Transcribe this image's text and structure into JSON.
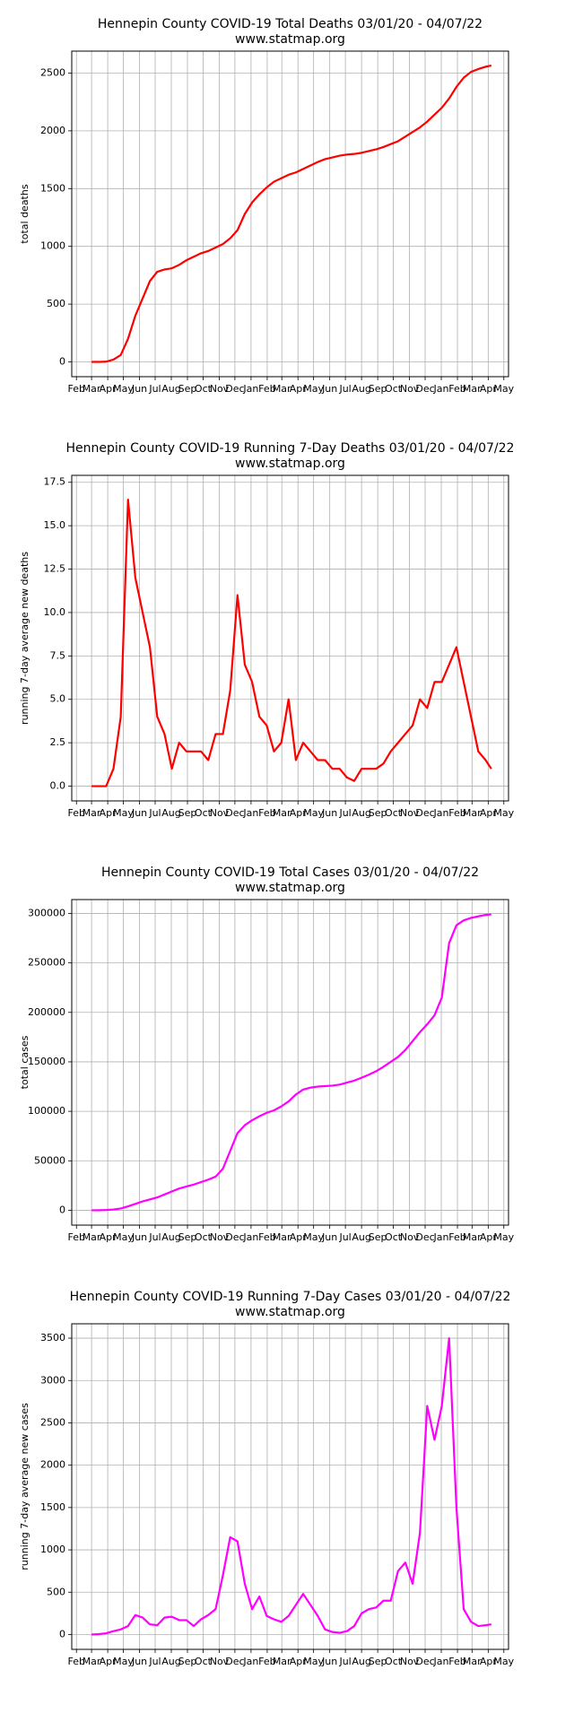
{
  "chart_data": [
    {
      "type": "line",
      "title": "Hennepin County COVID-19 Total Deaths 03/01/20 - 04/07/22",
      "subtitle": "www.statmap.org",
      "ylabel": "total deaths",
      "color": "#ff0000",
      "grid": true,
      "x": [
        0,
        14,
        28,
        42,
        56,
        70,
        84,
        98,
        112,
        126,
        140,
        154,
        168,
        182,
        196,
        210,
        224,
        238,
        252,
        266,
        280,
        294,
        308,
        322,
        336,
        350,
        364,
        378,
        392,
        406,
        420,
        434,
        448,
        462,
        476,
        490,
        504,
        518,
        532,
        546,
        560,
        574,
        588,
        602,
        616,
        630,
        644,
        658,
        672,
        686,
        700,
        714,
        728,
        742,
        756,
        767
      ],
      "values": [
        0,
        0,
        2,
        20,
        60,
        200,
        400,
        550,
        700,
        780,
        800,
        810,
        840,
        880,
        910,
        940,
        960,
        990,
        1020,
        1070,
        1140,
        1280,
        1380,
        1450,
        1510,
        1560,
        1590,
        1620,
        1640,
        1670,
        1700,
        1730,
        1755,
        1770,
        1785,
        1795,
        1800,
        1810,
        1825,
        1840,
        1860,
        1885,
        1910,
        1950,
        1990,
        2030,
        2080,
        2140,
        2200,
        2280,
        2380,
        2460,
        2510,
        2535,
        2555,
        2565
      ],
      "xlim": [
        -38,
        800
      ],
      "xticks": [
        {
          "value": -29,
          "label": "Feb"
        },
        {
          "value": 0,
          "label": "Mar"
        },
        {
          "value": 31,
          "label": "Apr"
        },
        {
          "value": 61,
          "label": "May"
        },
        {
          "value": 92,
          "label": "Jun"
        },
        {
          "value": 122,
          "label": "Jul"
        },
        {
          "value": 153,
          "label": "Aug"
        },
        {
          "value": 184,
          "label": "Sep"
        },
        {
          "value": 214,
          "label": "Oct"
        },
        {
          "value": 245,
          "label": "Nov"
        },
        {
          "value": 275,
          "label": "Dec"
        },
        {
          "value": 306,
          "label": "Jan"
        },
        {
          "value": 337,
          "label": "Feb"
        },
        {
          "value": 365,
          "label": "Mar"
        },
        {
          "value": 396,
          "label": "Apr"
        },
        {
          "value": 426,
          "label": "May"
        },
        {
          "value": 457,
          "label": "Jun"
        },
        {
          "value": 487,
          "label": "Jul"
        },
        {
          "value": 518,
          "label": "Aug"
        },
        {
          "value": 549,
          "label": "Sep"
        },
        {
          "value": 579,
          "label": "Oct"
        },
        {
          "value": 610,
          "label": "Nov"
        },
        {
          "value": 640,
          "label": "Dec"
        },
        {
          "value": 671,
          "label": "Jan"
        },
        {
          "value": 702,
          "label": "Feb"
        },
        {
          "value": 730,
          "label": "Mar"
        },
        {
          "value": 761,
          "label": "Apr"
        },
        {
          "value": 791,
          "label": "May"
        }
      ],
      "ylim": [
        -128,
        2690
      ],
      "yticks": [
        0,
        500,
        1000,
        1500,
        2000,
        2500
      ]
    },
    {
      "type": "line",
      "title": "Hennepin County COVID-19 Running 7-Day Deaths 03/01/20 - 04/07/22",
      "subtitle": "www.statmap.org",
      "ylabel": "running 7-day average new deaths",
      "color": "#ff0000",
      "grid": true,
      "x": [
        0,
        14,
        28,
        42,
        56,
        70,
        84,
        98,
        112,
        126,
        140,
        154,
        168,
        182,
        196,
        210,
        224,
        238,
        252,
        266,
        280,
        294,
        308,
        322,
        336,
        350,
        364,
        378,
        392,
        406,
        420,
        434,
        448,
        462,
        476,
        490,
        504,
        518,
        532,
        546,
        560,
        574,
        588,
        602,
        616,
        630,
        644,
        658,
        672,
        686,
        700,
        714,
        728,
        742,
        756,
        767
      ],
      "values": [
        0,
        0,
        0,
        1,
        4,
        16.5,
        12,
        10,
        8,
        4,
        3,
        1,
        2.5,
        2,
        2,
        2,
        1.5,
        3,
        3,
        5.5,
        11,
        7,
        6,
        4,
        3.5,
        2,
        2.5,
        5,
        1.5,
        2.5,
        2,
        1.5,
        1.5,
        1,
        1,
        0.5,
        0.3,
        1,
        1,
        1,
        1.3,
        2,
        2.5,
        3,
        3.5,
        5,
        4.5,
        6,
        6,
        7,
        8,
        6,
        4,
        2,
        1.5,
        1
      ],
      "xlim": [
        -38,
        800
      ],
      "xticks": [
        {
          "value": -29,
          "label": "Feb"
        },
        {
          "value": 0,
          "label": "Mar"
        },
        {
          "value": 31,
          "label": "Apr"
        },
        {
          "value": 61,
          "label": "May"
        },
        {
          "value": 92,
          "label": "Jun"
        },
        {
          "value": 122,
          "label": "Jul"
        },
        {
          "value": 153,
          "label": "Aug"
        },
        {
          "value": 184,
          "label": "Sep"
        },
        {
          "value": 214,
          "label": "Oct"
        },
        {
          "value": 245,
          "label": "Nov"
        },
        {
          "value": 275,
          "label": "Dec"
        },
        {
          "value": 306,
          "label": "Jan"
        },
        {
          "value": 337,
          "label": "Feb"
        },
        {
          "value": 365,
          "label": "Mar"
        },
        {
          "value": 396,
          "label": "Apr"
        },
        {
          "value": 426,
          "label": "May"
        },
        {
          "value": 457,
          "label": "Jun"
        },
        {
          "value": 487,
          "label": "Jul"
        },
        {
          "value": 518,
          "label": "Aug"
        },
        {
          "value": 549,
          "label": "Sep"
        },
        {
          "value": 579,
          "label": "Oct"
        },
        {
          "value": 610,
          "label": "Nov"
        },
        {
          "value": 640,
          "label": "Dec"
        },
        {
          "value": 671,
          "label": "Jan"
        },
        {
          "value": 702,
          "label": "Feb"
        },
        {
          "value": 730,
          "label": "Mar"
        },
        {
          "value": 761,
          "label": "Apr"
        },
        {
          "value": 791,
          "label": "May"
        }
      ],
      "ylim": [
        -0.85,
        17.9
      ],
      "yticks": [
        {
          "value": 0,
          "label": "0.0"
        },
        2.5,
        {
          "value": 5,
          "label": "5.0"
        },
        7.5,
        {
          "value": 10,
          "label": "10.0"
        },
        12.5,
        {
          "value": 15,
          "label": "15.0"
        },
        17.5
      ]
    },
    {
      "type": "line",
      "title": "Hennepin County COVID-19 Total Cases 03/01/20 - 04/07/22",
      "subtitle": "www.statmap.org",
      "ylabel": "total cases",
      "color": "#ff00ff",
      "grid": true,
      "x": [
        0,
        14,
        28,
        42,
        56,
        70,
        84,
        98,
        112,
        126,
        140,
        154,
        168,
        182,
        196,
        210,
        224,
        238,
        252,
        266,
        280,
        294,
        308,
        322,
        336,
        350,
        364,
        378,
        392,
        406,
        420,
        434,
        448,
        462,
        476,
        490,
        504,
        518,
        532,
        546,
        560,
        574,
        588,
        602,
        616,
        630,
        644,
        658,
        672,
        686,
        700,
        714,
        728,
        742,
        756,
        767
      ],
      "values": [
        0,
        100,
        300,
        800,
        1800,
        4000,
        6500,
        9000,
        11000,
        13000,
        16000,
        19000,
        22000,
        24000,
        26000,
        28500,
        31000,
        34000,
        42000,
        60000,
        78000,
        86000,
        91000,
        95000,
        98500,
        101000,
        105000,
        110000,
        117000,
        122000,
        124000,
        125000,
        125500,
        126000,
        127000,
        129000,
        131000,
        134000,
        137000,
        140500,
        145000,
        150000,
        155000,
        162000,
        171000,
        180000,
        188000,
        197000,
        215000,
        270000,
        288000,
        293000,
        295500,
        297000,
        298500,
        299000
      ],
      "xlim": [
        -38,
        800
      ],
      "xticks": [
        {
          "value": -29,
          "label": "Feb"
        },
        {
          "value": 0,
          "label": "Mar"
        },
        {
          "value": 31,
          "label": "Apr"
        },
        {
          "value": 61,
          "label": "May"
        },
        {
          "value": 92,
          "label": "Jun"
        },
        {
          "value": 122,
          "label": "Jul"
        },
        {
          "value": 153,
          "label": "Aug"
        },
        {
          "value": 184,
          "label": "Sep"
        },
        {
          "value": 214,
          "label": "Oct"
        },
        {
          "value": 245,
          "label": "Nov"
        },
        {
          "value": 275,
          "label": "Dec"
        },
        {
          "value": 306,
          "label": "Jan"
        },
        {
          "value": 337,
          "label": "Feb"
        },
        {
          "value": 365,
          "label": "Mar"
        },
        {
          "value": 396,
          "label": "Apr"
        },
        {
          "value": 426,
          "label": "May"
        },
        {
          "value": 457,
          "label": "Jun"
        },
        {
          "value": 487,
          "label": "Jul"
        },
        {
          "value": 518,
          "label": "Aug"
        },
        {
          "value": 549,
          "label": "Sep"
        },
        {
          "value": 579,
          "label": "Oct"
        },
        {
          "value": 610,
          "label": "Nov"
        },
        {
          "value": 640,
          "label": "Dec"
        },
        {
          "value": 671,
          "label": "Jan"
        },
        {
          "value": 702,
          "label": "Feb"
        },
        {
          "value": 730,
          "label": "Mar"
        },
        {
          "value": 761,
          "label": "Apr"
        },
        {
          "value": 791,
          "label": "May"
        }
      ],
      "ylim": [
        -15000,
        314000
      ],
      "yticks": [
        0,
        50000,
        100000,
        150000,
        200000,
        250000,
        300000
      ]
    },
    {
      "type": "line",
      "title": "Hennepin County COVID-19 Running 7-Day Cases 03/01/20 - 04/07/22",
      "subtitle": "www.statmap.org",
      "ylabel": "running 7-day average new cases",
      "color": "#ff00ff",
      "grid": true,
      "x": [
        0,
        14,
        28,
        42,
        56,
        70,
        84,
        98,
        112,
        126,
        140,
        154,
        168,
        182,
        196,
        210,
        224,
        238,
        252,
        266,
        280,
        294,
        308,
        322,
        336,
        350,
        364,
        378,
        392,
        406,
        420,
        434,
        448,
        462,
        476,
        490,
        504,
        518,
        532,
        546,
        560,
        574,
        588,
        602,
        616,
        630,
        644,
        658,
        672,
        686,
        700,
        714,
        728,
        742,
        756,
        767
      ],
      "values": [
        0,
        5,
        15,
        40,
        60,
        100,
        230,
        200,
        120,
        110,
        200,
        210,
        170,
        170,
        100,
        180,
        230,
        300,
        700,
        1150,
        1100,
        600,
        300,
        450,
        220,
        180,
        150,
        220,
        350,
        480,
        350,
        220,
        60,
        30,
        20,
        40,
        100,
        250,
        300,
        320,
        400,
        400,
        750,
        850,
        600,
        1200,
        2700,
        2300,
        2700,
        3500,
        1500,
        300,
        150,
        100,
        110,
        120
      ],
      "xlim": [
        -38,
        800
      ],
      "xticks": [
        {
          "value": -29,
          "label": "Feb"
        },
        {
          "value": 0,
          "label": "Mar"
        },
        {
          "value": 31,
          "label": "Apr"
        },
        {
          "value": 61,
          "label": "May"
        },
        {
          "value": 92,
          "label": "Jun"
        },
        {
          "value": 122,
          "label": "Jul"
        },
        {
          "value": 153,
          "label": "Aug"
        },
        {
          "value": 184,
          "label": "Sep"
        },
        {
          "value": 214,
          "label": "Oct"
        },
        {
          "value": 245,
          "label": "Nov"
        },
        {
          "value": 275,
          "label": "Dec"
        },
        {
          "value": 306,
          "label": "Jan"
        },
        {
          "value": 337,
          "label": "Feb"
        },
        {
          "value": 365,
          "label": "Mar"
        },
        {
          "value": 396,
          "label": "Apr"
        },
        {
          "value": 426,
          "label": "May"
        },
        {
          "value": 457,
          "label": "Jun"
        },
        {
          "value": 487,
          "label": "Jul"
        },
        {
          "value": 518,
          "label": "Aug"
        },
        {
          "value": 549,
          "label": "Sep"
        },
        {
          "value": 579,
          "label": "Oct"
        },
        {
          "value": 610,
          "label": "Nov"
        },
        {
          "value": 640,
          "label": "Dec"
        },
        {
          "value": 671,
          "label": "Jan"
        },
        {
          "value": 702,
          "label": "Feb"
        },
        {
          "value": 730,
          "label": "Mar"
        },
        {
          "value": 761,
          "label": "Apr"
        },
        {
          "value": 791,
          "label": "May"
        }
      ],
      "ylim": [
        -175,
        3670
      ],
      "yticks": [
        0,
        500,
        1000,
        1500,
        2000,
        2500,
        3000,
        3500
      ]
    }
  ]
}
